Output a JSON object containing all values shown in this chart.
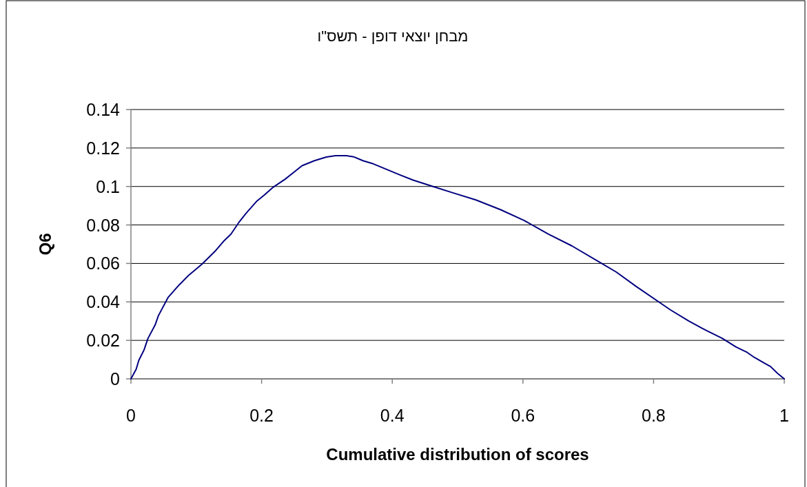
{
  "chart_data": {
    "type": "line",
    "title": "מבחן יוצאי דופן - תשס\"ו",
    "xlabel": "Cumulative distribution of scores",
    "ylabel": "Q6",
    "xlim": [
      0,
      1
    ],
    "ylim": [
      0,
      0.14
    ],
    "xticks": [
      0,
      0.2,
      0.4,
      0.6,
      0.8,
      1
    ],
    "yticks": [
      0,
      0.02,
      0.04,
      0.06,
      0.08,
      0.1,
      0.12,
      0.14
    ],
    "grid": "y",
    "marker": "none",
    "line_style": "solid",
    "series": [
      {
        "color": "#000080",
        "x": [
          0,
          0.008,
          0.012,
          0.02,
          0.026,
          0.037,
          0.042,
          0.057,
          0.074,
          0.088,
          0.109,
          0.13,
          0.142,
          0.153,
          0.165,
          0.176,
          0.193,
          0.204,
          0.218,
          0.236,
          0.262,
          0.281,
          0.299,
          0.313,
          0.33,
          0.341,
          0.355,
          0.369,
          0.411,
          0.432,
          0.464,
          0.491,
          0.528,
          0.566,
          0.602,
          0.639,
          0.675,
          0.72,
          0.743,
          0.773,
          0.826,
          0.854,
          0.882,
          0.905,
          0.926,
          0.943,
          0.954,
          0.969,
          0.979,
          0.99,
          1
        ],
        "values": [
          0,
          0.005,
          0.0096,
          0.015,
          0.021,
          0.028,
          0.0328,
          0.0424,
          0.0489,
          0.0537,
          0.0597,
          0.0668,
          0.0716,
          0.0752,
          0.0812,
          0.086,
          0.0925,
          0.0955,
          0.0997,
          0.1038,
          0.1108,
          0.1134,
          0.1153,
          0.116,
          0.116,
          0.1154,
          0.1134,
          0.112,
          0.1061,
          0.1033,
          0.0998,
          0.0969,
          0.093,
          0.0879,
          0.0823,
          0.0752,
          0.0691,
          0.0601,
          0.0555,
          0.0481,
          0.0358,
          0.03,
          0.0249,
          0.0211,
          0.0166,
          0.0138,
          0.0112,
          0.0083,
          0.0064,
          0.0028,
          0
        ]
      }
    ]
  }
}
